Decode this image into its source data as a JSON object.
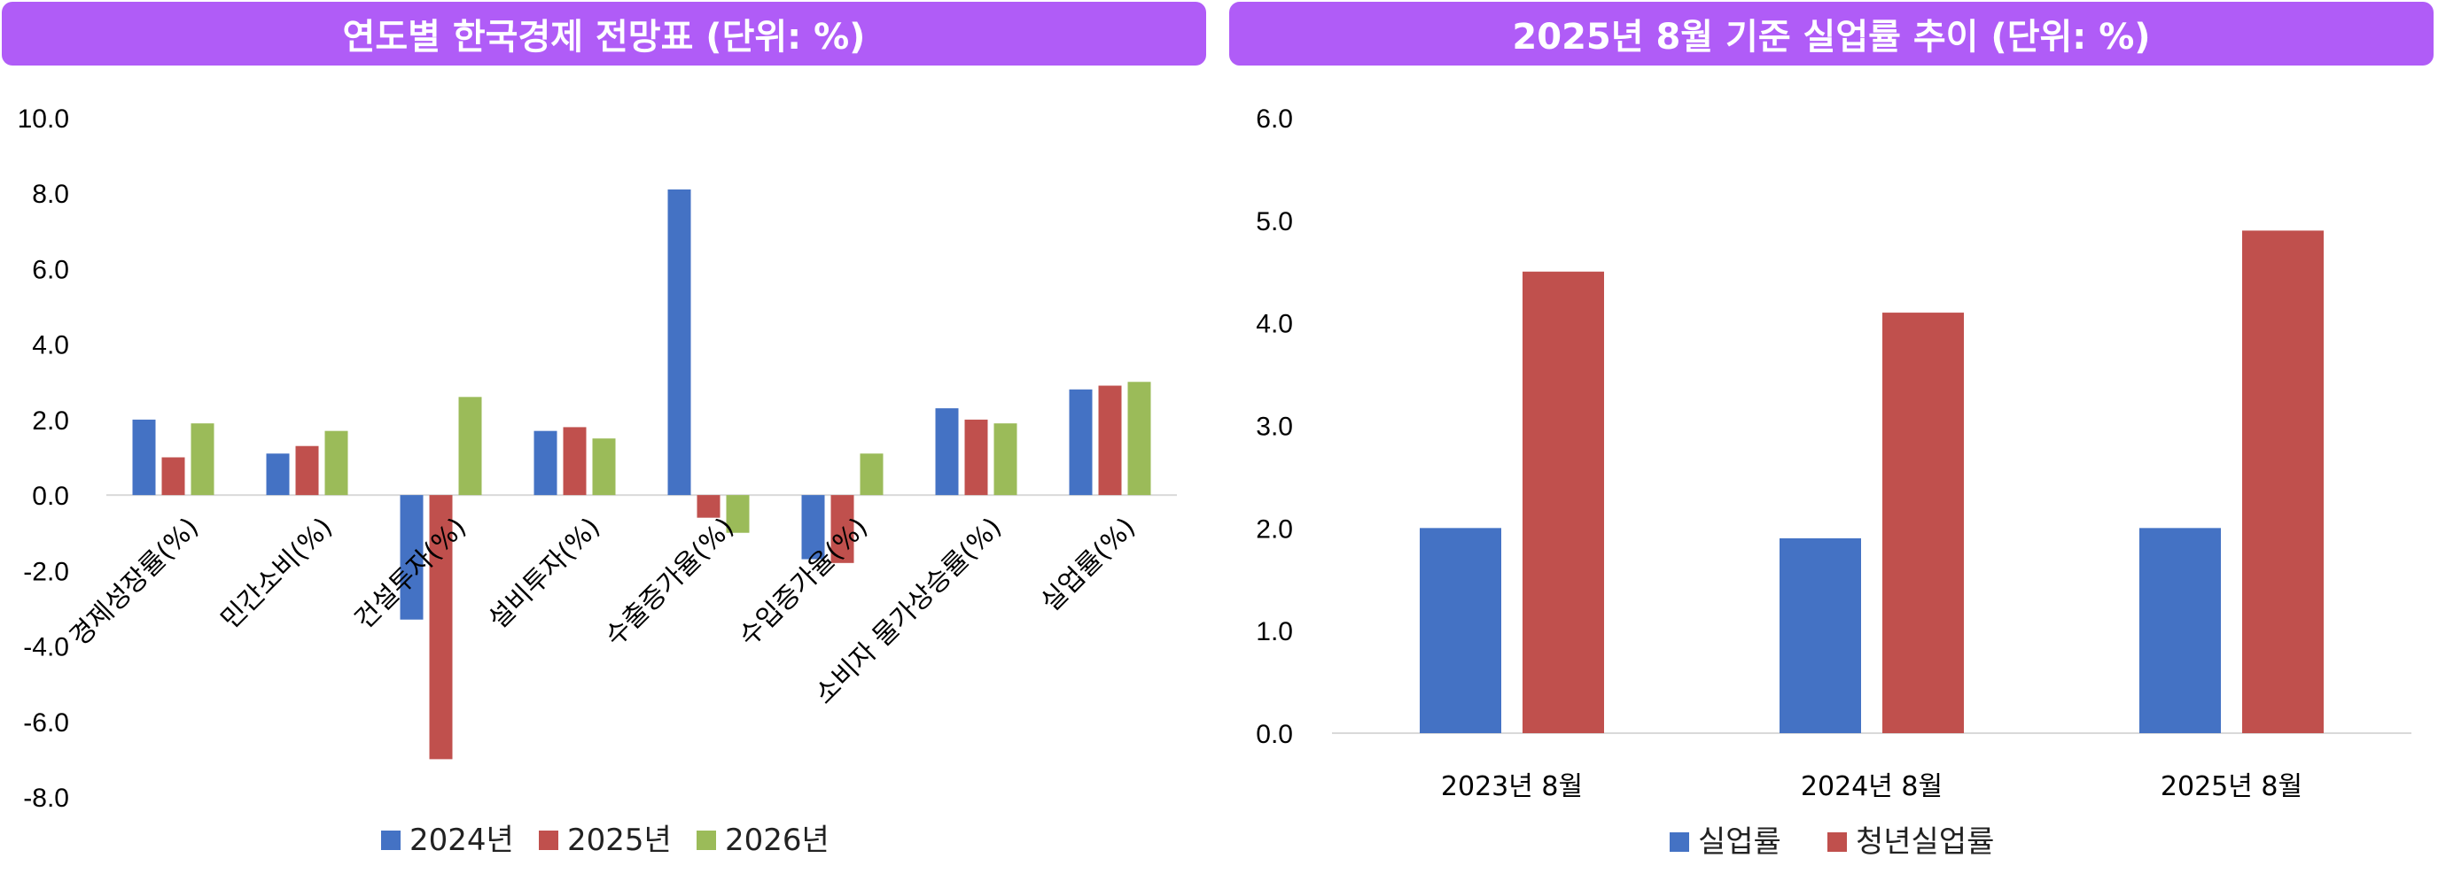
{
  "chart_data": [
    {
      "type": "bar",
      "title": "연도별 한국경제 전망표 (단위: %)",
      "xlabel": "",
      "ylabel": "",
      "ylim": [
        -8.0,
        10.0
      ],
      "yticks": [
        "10.0",
        "8.0",
        "6.0",
        "4.0",
        "2.0",
        "0.0",
        "-2.0",
        "-4.0",
        "-6.0",
        "-8.0"
      ],
      "categories": [
        "경제성장률(%)",
        "민간소비(%)",
        "건설투자(%)",
        "설비투자(%)",
        "수출증가율(%)",
        "수입증가율(%)",
        "소비자 물가상승률(%)",
        "실업률(%)"
      ],
      "series": [
        {
          "name": "2024년",
          "color": "#4472c4",
          "values": [
            2.0,
            1.1,
            -3.3,
            1.7,
            8.1,
            -1.7,
            2.3,
            2.8
          ]
        },
        {
          "name": "2025년",
          "color": "#c0504d",
          "values": [
            1.0,
            1.3,
            -7.0,
            1.8,
            -0.6,
            -1.8,
            2.0,
            2.9
          ]
        },
        {
          "name": "2026년",
          "color": "#9bbb59",
          "values": [
            1.9,
            1.7,
            2.6,
            1.5,
            -1.0,
            1.1,
            1.9,
            3.0
          ]
        }
      ],
      "legend_position": "bottom",
      "grid": false
    },
    {
      "type": "bar",
      "title": "2025년 8월 기준 실업률 추이 (단위: %)",
      "xlabel": "",
      "ylabel": "",
      "ylim": [
        0.0,
        6.0
      ],
      "yticks": [
        "6.0",
        "5.0",
        "4.0",
        "3.0",
        "2.0",
        "1.0",
        "0.0"
      ],
      "categories": [
        "2023년 8월",
        "2024년 8월",
        "2025년 8월"
      ],
      "series": [
        {
          "name": "실업률",
          "color": "#4472c4",
          "values": [
            2.0,
            1.9,
            2.0
          ]
        },
        {
          "name": "청년실업률",
          "color": "#c0504d",
          "values": [
            4.5,
            4.1,
            4.9
          ]
        }
      ],
      "legend_position": "bottom",
      "grid": false
    }
  ]
}
